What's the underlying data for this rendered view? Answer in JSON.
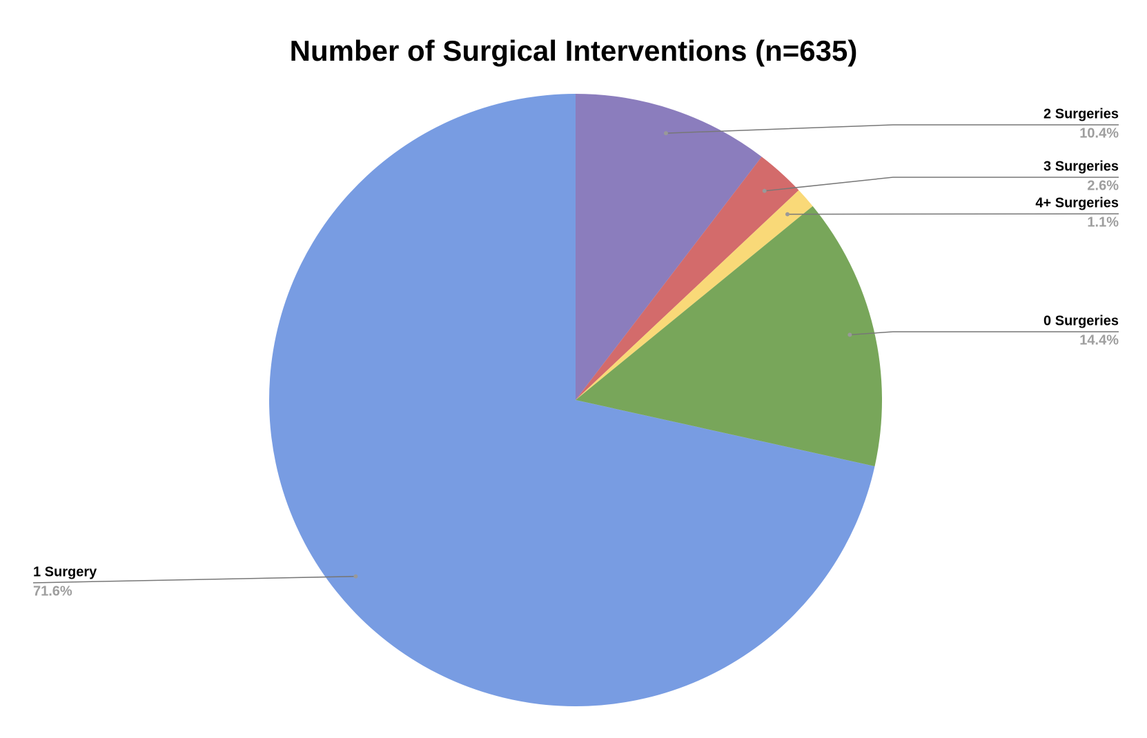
{
  "chart_data": {
    "type": "pie",
    "title": "Number of Surgical Interventions (n=635)",
    "categories": [
      "2 Surgeries",
      "3 Surgeries",
      "4+ Surgeries",
      "0 Surgeries",
      "1 Surgery"
    ],
    "values": [
      10.4,
      2.6,
      1.1,
      14.4,
      71.6
    ],
    "value_labels": [
      "10.4%",
      "2.6%",
      "1.1%",
      "14.4%",
      "71.6%"
    ],
    "colors": [
      "#8b7dbd",
      "#d36b6b",
      "#f9d978",
      "#78a65a",
      "#789ce2"
    ]
  }
}
